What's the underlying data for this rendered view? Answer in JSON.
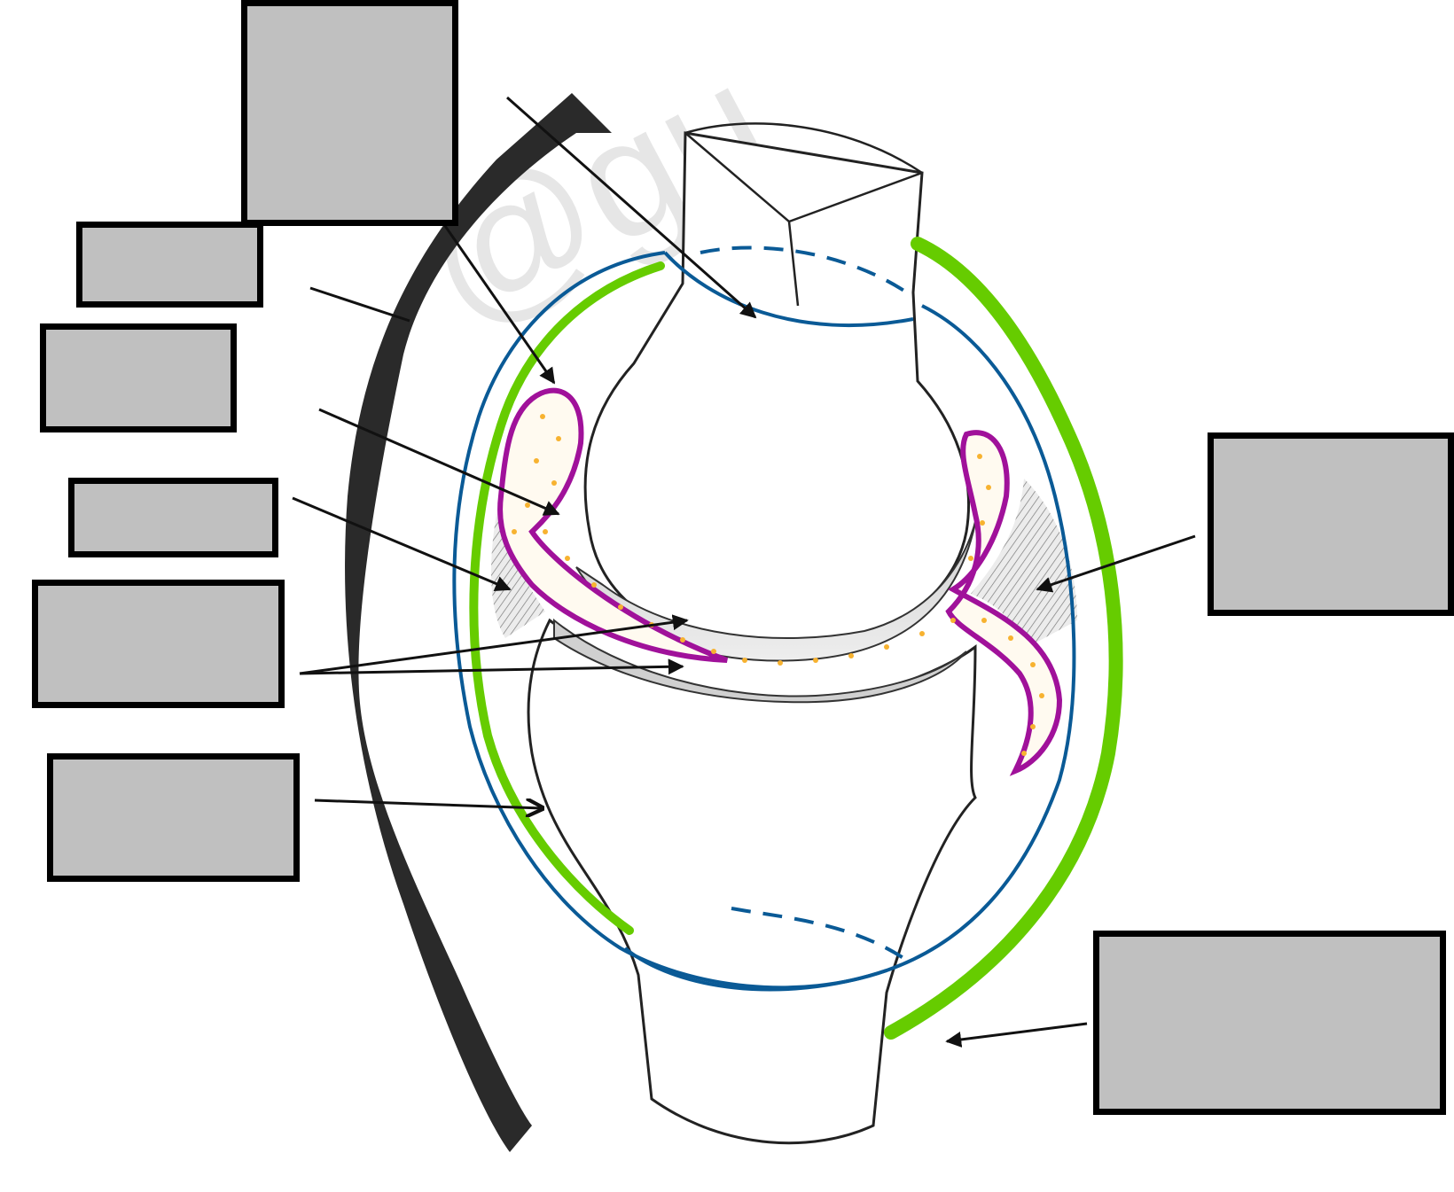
{
  "diagram": {
    "watermark": "@gu",
    "label_boxes": [
      {
        "id": "label-1",
        "text": ""
      },
      {
        "id": "label-2",
        "text": ""
      },
      {
        "id": "label-3",
        "text": ""
      },
      {
        "id": "label-4",
        "text": ""
      },
      {
        "id": "label-5",
        "text": ""
      },
      {
        "id": "label-6",
        "text": ""
      },
      {
        "id": "label-7",
        "text": ""
      },
      {
        "id": "label-8",
        "text": ""
      }
    ],
    "colors": {
      "fibrous_capsule": "#66cc00",
      "synovial_membrane": "#0a5a96",
      "synovial_fold": "#a0119a",
      "synovial_fluid_dots": "#f7b230",
      "label_box_fill": "#c0c0c0",
      "ligament": "#2a2a2a",
      "outline": "#222222"
    }
  }
}
